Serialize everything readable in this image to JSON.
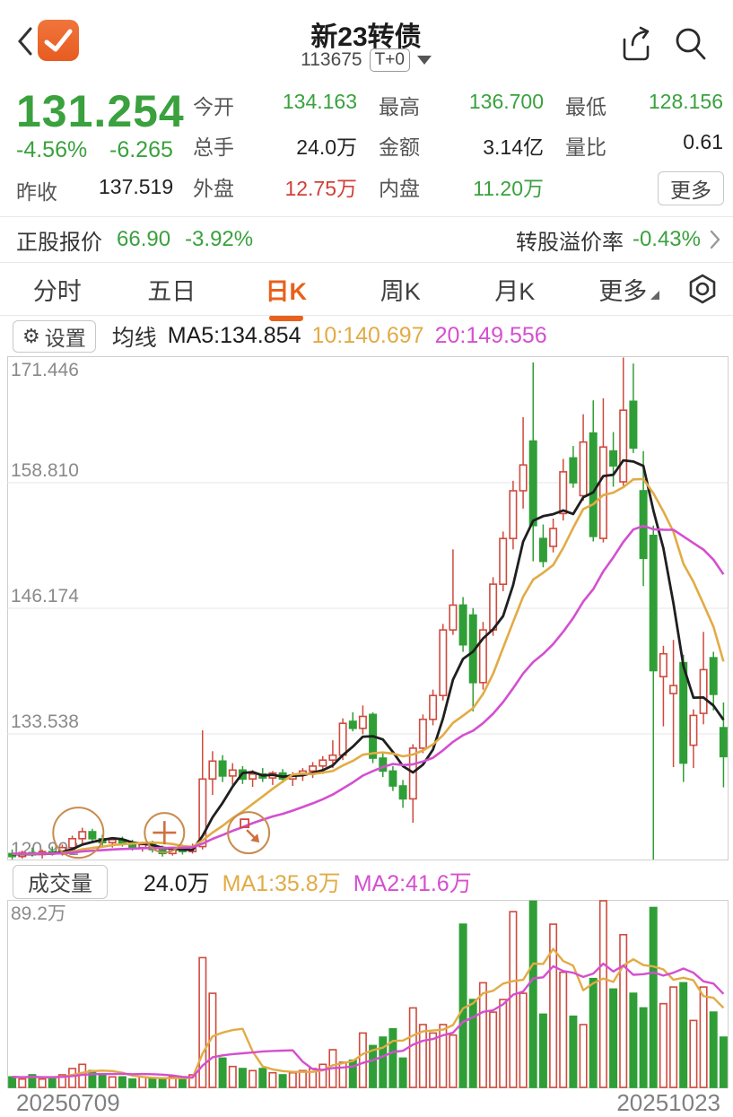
{
  "header": {
    "title": "新23转债",
    "code": "113675",
    "badge": "T+0"
  },
  "quote": {
    "price": "131.254",
    "change_pct": "-4.56%",
    "change_val": "-6.265",
    "prev_close_label": "昨收",
    "prev_close": "137.519",
    "fields": [
      {
        "label": "今开",
        "value": "134.163",
        "color": "green"
      },
      {
        "label": "最高",
        "value": "136.700",
        "color": "green"
      },
      {
        "label": "最低",
        "value": "128.156",
        "color": "green"
      },
      {
        "label": "总手",
        "value": "24.0万",
        "color": "black"
      },
      {
        "label": "金额",
        "value": "3.14亿",
        "color": "black"
      },
      {
        "label": "量比",
        "value": "0.61",
        "color": "black"
      },
      {
        "label": "外盘",
        "value": "12.75万",
        "color": "red"
      },
      {
        "label": "内盘",
        "value": "11.20万",
        "color": "green"
      }
    ],
    "more_label": "更多"
  },
  "stock_row": {
    "label": "正股报价",
    "price": "66.90",
    "pct": "-3.92%",
    "premium_label": "转股溢价率",
    "premium": "-0.43%"
  },
  "tabs": {
    "items": [
      "分时",
      "五日",
      "日K",
      "周K",
      "月K",
      "更多"
    ],
    "active": "日K"
  },
  "kline_legend": {
    "settings": "设置",
    "prefix": "均线",
    "ma5": "MA5:134.854",
    "ma10": "10:140.697",
    "ma20": "20:149.556"
  },
  "volume_legend": {
    "label": "成交量",
    "current": "24.0万",
    "ma1": "MA1:35.8万",
    "ma2": "MA2:41.6万"
  },
  "colors": {
    "green": "#2f9e36",
    "green_text": "#3aa13e",
    "red": "#cf4a3d",
    "red_text": "#d23f38",
    "black": "#222222",
    "orange_accent": "#e8611c",
    "ma5": "#1f1f1f",
    "ma10": "#e2ab45",
    "ma20": "#d44fd0",
    "grid": "#e6e6e6",
    "border": "#cfcfcf",
    "axis_text": "#8a8a8a",
    "annotation": "#c98b4e"
  },
  "chart_data": {
    "type": "candlestick+volume",
    "title": "新23转债 日K",
    "x_start_label": "20250709",
    "x_end_label": "20251023",
    "y_ticks": [
      171.446,
      158.81,
      146.174,
      133.538,
      120.902
    ],
    "price_max": 171.446,
    "price_min": 120.902,
    "volume_max": 89.2,
    "volume_max_label": "89.2万",
    "ma_periods_price": [
      5,
      10,
      20
    ],
    "ma_periods_volume": [
      5,
      10
    ],
    "seed_close": 121.5,
    "seed_volume": 5,
    "candles": [
      [
        121.5,
        121.9,
        120.9,
        121.2
      ],
      [
        121.2,
        121.8,
        121.0,
        121.6
      ],
      [
        121.6,
        122.1,
        121.2,
        121.4
      ],
      [
        121.4,
        121.9,
        121.0,
        121.7
      ],
      [
        121.7,
        122.2,
        121.3,
        121.5
      ],
      [
        121.5,
        122.4,
        121.3,
        122.1
      ],
      [
        122.1,
        123.3,
        121.8,
        123.0
      ],
      [
        123.0,
        124.1,
        122.5,
        123.7
      ],
      [
        123.7,
        124.0,
        122.7,
        123.0
      ],
      [
        123.0,
        123.4,
        122.3,
        122.6
      ],
      [
        122.6,
        123.1,
        122.1,
        122.9
      ],
      [
        122.9,
        123.2,
        122.2,
        122.5
      ],
      [
        122.5,
        122.9,
        121.8,
        122.1
      ],
      [
        122.1,
        122.7,
        121.7,
        122.4
      ],
      [
        122.4,
        122.8,
        121.6,
        121.9
      ],
      [
        121.9,
        122.3,
        121.2,
        121.5
      ],
      [
        121.5,
        122.2,
        121.3,
        122.0
      ],
      [
        122.0,
        122.4,
        121.4,
        121.7
      ],
      [
        121.7,
        122.5,
        121.5,
        122.2
      ],
      [
        122.2,
        133.9,
        121.9,
        129.0
      ],
      [
        129.0,
        131.8,
        127.4,
        130.8
      ],
      [
        130.8,
        131.4,
        128.7,
        129.3
      ],
      [
        129.3,
        130.6,
        128.4,
        129.9
      ],
      [
        129.9,
        130.3,
        128.5,
        129.0
      ],
      [
        129.0,
        129.9,
        128.2,
        129.5
      ],
      [
        129.5,
        130.1,
        128.7,
        129.1
      ],
      [
        129.1,
        129.8,
        128.4,
        129.6
      ],
      [
        129.6,
        130.0,
        128.6,
        129.0
      ],
      [
        129.0,
        129.7,
        128.3,
        129.4
      ],
      [
        129.4,
        130.1,
        128.8,
        129.8
      ],
      [
        129.8,
        130.7,
        129.1,
        130.3
      ],
      [
        130.3,
        131.3,
        129.5,
        130.9
      ],
      [
        130.9,
        132.9,
        130.1,
        131.4
      ],
      [
        131.4,
        135.1,
        130.9,
        134.6
      ],
      [
        134.8,
        135.7,
        133.8,
        134.1
      ],
      [
        134.1,
        136.4,
        133.5,
        135.3
      ],
      [
        135.5,
        135.7,
        130.6,
        131.1
      ],
      [
        131.1,
        131.6,
        129.2,
        129.8
      ],
      [
        129.8,
        130.3,
        127.8,
        128.3
      ],
      [
        128.3,
        128.9,
        126.1,
        127.0
      ],
      [
        127.0,
        132.5,
        124.6,
        132.1
      ],
      [
        132.1,
        135.5,
        131.6,
        135.0
      ],
      [
        135.0,
        138.0,
        134.4,
        137.4
      ],
      [
        137.4,
        144.6,
        136.9,
        144.0
      ],
      [
        144.0,
        152.1,
        143.5,
        146.5
      ],
      [
        146.5,
        147.3,
        141.8,
        142.5
      ],
      [
        145.5,
        146.2,
        135.8,
        138.7
      ],
      [
        138.7,
        144.8,
        138.0,
        144.0
      ],
      [
        144.0,
        149.3,
        143.4,
        148.6
      ],
      [
        148.6,
        153.9,
        147.9,
        153.2
      ],
      [
        153.2,
        159.0,
        152.1,
        158.0
      ],
      [
        158.0,
        165.4,
        156.2,
        160.6
      ],
      [
        163.0,
        170.9,
        150.9,
        154.5
      ],
      [
        153.2,
        154.6,
        150.3,
        150.9
      ],
      [
        152.4,
        155.2,
        151.8,
        154.2
      ],
      [
        155.7,
        161.2,
        155.0,
        159.9
      ],
      [
        161.3,
        162.5,
        158.3,
        158.8
      ],
      [
        157.5,
        165.7,
        157.0,
        162.9
      ],
      [
        163.8,
        167.1,
        152.9,
        153.4
      ],
      [
        153.2,
        167.3,
        152.8,
        162.4
      ],
      [
        162.0,
        163.9,
        158.4,
        160.5
      ],
      [
        158.9,
        171.4,
        158.5,
        166.1
      ],
      [
        167.0,
        170.8,
        161.8,
        162.3
      ],
      [
        158.0,
        162.0,
        148.4,
        151.2
      ],
      [
        153.5,
        154.5,
        120.9,
        139.9
      ],
      [
        139.3,
        142.4,
        134.3,
        141.6
      ],
      [
        137.6,
        143.0,
        130.2,
        138.4
      ],
      [
        140.7,
        141.5,
        128.7,
        130.6
      ],
      [
        132.4,
        136.0,
        130.1,
        135.4
      ],
      [
        135.6,
        143.8,
        134.5,
        140.0
      ],
      [
        141.2,
        141.8,
        135.9,
        137.519
      ],
      [
        134.163,
        136.7,
        128.156,
        131.254
      ]
    ],
    "volumes": [
      5,
      4,
      6,
      4,
      5,
      6,
      9,
      11,
      8,
      6,
      5,
      5,
      4,
      5,
      4,
      4,
      5,
      4,
      6,
      62,
      45,
      14,
      10,
      9,
      8,
      9,
      7,
      6,
      7,
      8,
      9,
      11,
      18,
      12,
      13,
      26,
      20,
      24,
      28,
      14,
      38,
      30,
      26,
      30,
      25,
      78,
      42,
      50,
      36,
      42,
      84,
      45,
      89,
      35,
      78,
      55,
      34,
      30,
      52,
      89.2,
      47,
      73,
      45,
      38,
      86,
      40,
      48,
      50,
      32,
      48,
      36,
      24
    ],
    "annotations": [
      {
        "type": "circle",
        "icon": "none",
        "i": 6.6,
        "price": 123.6,
        "r": 28
      },
      {
        "type": "circle",
        "icon": "plus",
        "i": 15.2,
        "price": 123.6,
        "r": 22
      },
      {
        "type": "circle",
        "icon": "arrow",
        "i": 23.6,
        "price": 123.6,
        "r": 23
      }
    ]
  }
}
